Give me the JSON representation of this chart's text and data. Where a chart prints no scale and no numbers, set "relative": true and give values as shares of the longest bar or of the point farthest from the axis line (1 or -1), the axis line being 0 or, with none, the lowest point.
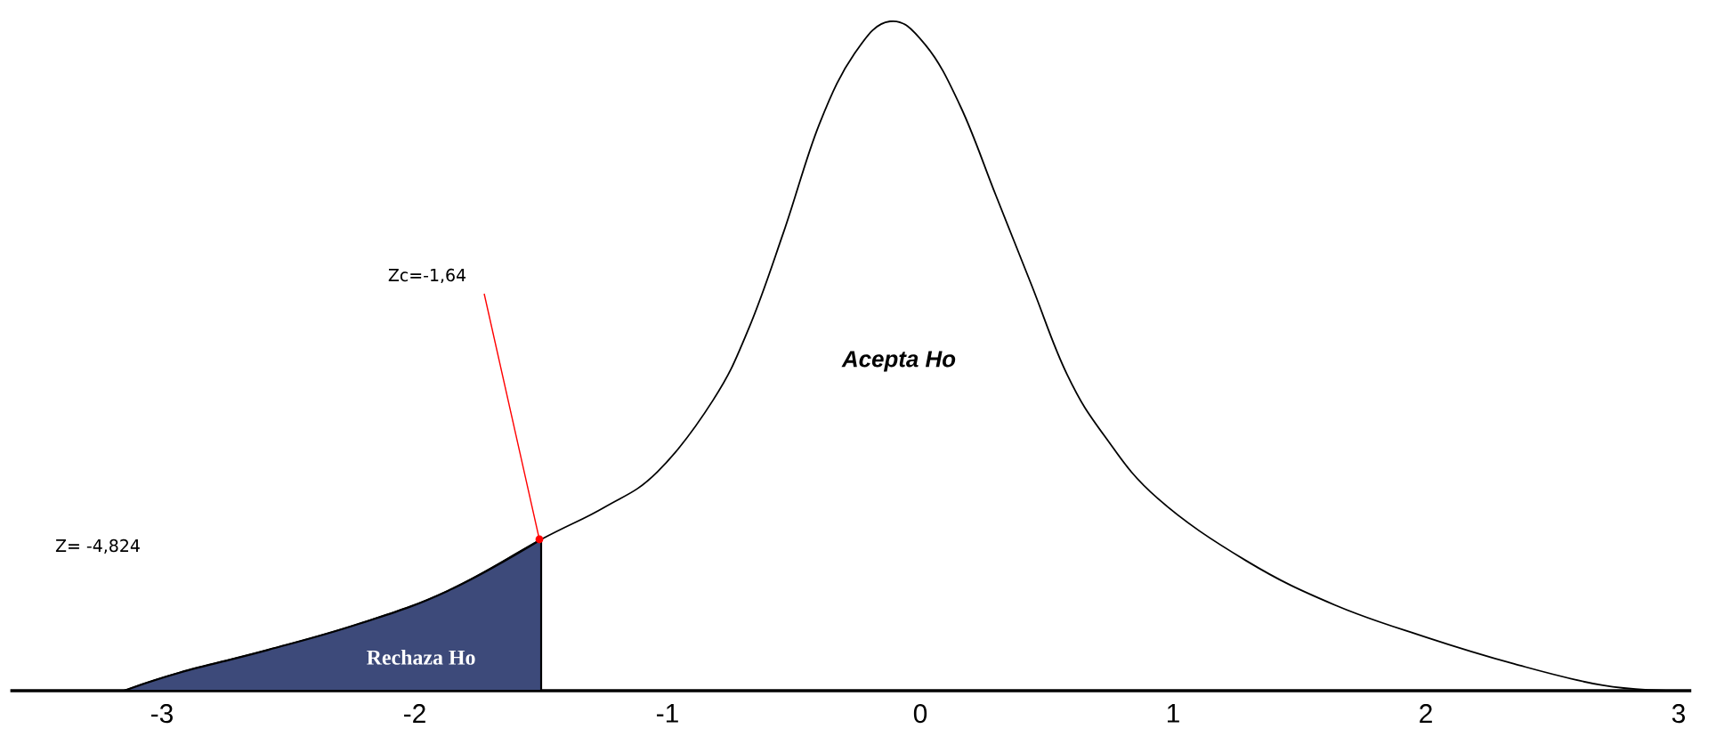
{
  "chart_data": {
    "type": "line",
    "relative": true,
    "xlim": [
      -3.6,
      3.05
    ],
    "xticks": [
      -3,
      -2,
      -1,
      0,
      1,
      2,
      3
    ],
    "series": [
      {
        "color": "#000000",
        "x": [
          -3.15,
          -2.93,
          -2.58,
          -2.22,
          -1.87,
          -1.5,
          -1.25,
          -1.04,
          -0.82,
          -0.68,
          -0.54,
          -0.4,
          -0.26,
          -0.12,
          0.02,
          0.16,
          0.3,
          0.44,
          0.58,
          0.73,
          0.94,
          1.29,
          1.64,
          2.0,
          2.35,
          2.7,
          2.97
        ],
        "values": [
          0,
          0.027,
          0.061,
          0.1,
          0.149,
          0.226,
          0.274,
          0.327,
          0.434,
          0.54,
          0.686,
          0.846,
          0.952,
          1,
          0.965,
          0.872,
          0.739,
          0.606,
          0.473,
          0.38,
          0.287,
          0.194,
          0.128,
          0.08,
          0.04,
          0.008,
          0
        ]
      },
      {
        "type": "area",
        "name": "Rechaza Ho",
        "color": "#3d4a7a",
        "x": [
          -3.15,
          -2.93,
          -2.58,
          -2.22,
          -1.87,
          -1.5
        ],
        "values": [
          0,
          0.027,
          0.061,
          0.1,
          0.149,
          0.226
        ]
      }
    ],
    "annotations": [
      "Zc=-1,64",
      "Acepta Ho",
      "Z= -4,824"
    ]
  }
}
